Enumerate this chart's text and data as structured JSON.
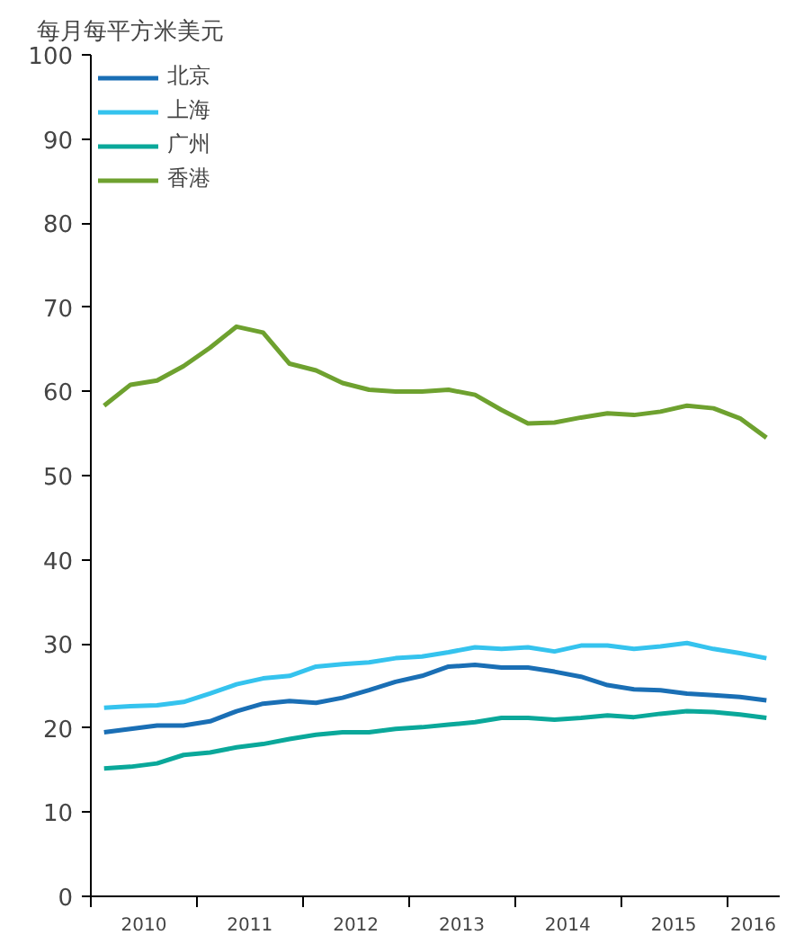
{
  "chart_data": {
    "type": "line",
    "ylabel": "每月每平方米美元",
    "x": [
      2010.125,
      2010.375,
      2010.625,
      2010.875,
      2011.125,
      2011.375,
      2011.625,
      2011.875,
      2012.125,
      2012.375,
      2012.625,
      2012.875,
      2013.125,
      2013.375,
      2013.625,
      2013.875,
      2014.125,
      2014.375,
      2014.625,
      2014.875,
      2015.125,
      2015.375,
      2015.625,
      2015.875,
      2016.125,
      2016.375
    ],
    "series": [
      {
        "name": "北京",
        "color": "#1a6fb5",
        "values": [
          19.5,
          19.9,
          20.3,
          20.3,
          20.8,
          22.0,
          22.9,
          23.2,
          23.0,
          23.6,
          24.5,
          25.5,
          26.2,
          27.3,
          27.5,
          27.2,
          27.2,
          26.7,
          26.1,
          25.1,
          24.6,
          24.5,
          24.1,
          23.9,
          23.7,
          23.3
        ]
      },
      {
        "name": "上海",
        "color": "#35c3ee",
        "values": [
          22.4,
          22.6,
          22.7,
          23.1,
          24.1,
          25.2,
          25.9,
          26.2,
          27.3,
          27.6,
          27.8,
          28.3,
          28.5,
          29.0,
          29.6,
          29.4,
          29.6,
          29.1,
          29.8,
          29.8,
          29.4,
          29.7,
          30.1,
          29.4,
          28.9,
          28.3
        ]
      },
      {
        "name": "广州",
        "color": "#0aa89a",
        "values": [
          15.2,
          15.4,
          15.8,
          16.8,
          17.1,
          17.7,
          18.1,
          18.7,
          19.2,
          19.5,
          19.5,
          19.9,
          20.1,
          20.4,
          20.7,
          21.2,
          21.2,
          21.0,
          21.2,
          21.5,
          21.3,
          21.7,
          22.0,
          21.9,
          21.6,
          21.2
        ]
      },
      {
        "name": "香港",
        "color": "#6ea12f",
        "values": [
          58.3,
          60.8,
          61.3,
          63.0,
          65.2,
          67.7,
          67.0,
          63.3,
          62.5,
          61.0,
          60.2,
          60.0,
          60.0,
          60.2,
          59.6,
          57.8,
          56.2,
          56.3,
          56.9,
          57.4,
          57.2,
          57.6,
          58.3,
          58.0,
          56.8,
          54.5
        ]
      }
    ],
    "xlim": [
      2010,
      2016.5
    ],
    "xticks": [
      {
        "value": 2010,
        "label": null
      },
      {
        "value": 2010.5,
        "label": "2010"
      },
      {
        "value": 2011,
        "label": null
      },
      {
        "value": 2011.5,
        "label": "2011"
      },
      {
        "value": 2012,
        "label": null
      },
      {
        "value": 2012.5,
        "label": "2012"
      },
      {
        "value": 2013,
        "label": null
      },
      {
        "value": 2013.5,
        "label": "2013"
      },
      {
        "value": 2014,
        "label": null
      },
      {
        "value": 2014.5,
        "label": "2014"
      },
      {
        "value": 2015,
        "label": null
      },
      {
        "value": 2015.5,
        "label": "2015"
      },
      {
        "value": 2016,
        "label": null
      },
      {
        "value": 2016.25,
        "label": "2016"
      }
    ],
    "ylim": [
      0,
      100
    ],
    "yticks": [
      0,
      10,
      20,
      30,
      40,
      50,
      60,
      70,
      80,
      90,
      100
    ],
    "grid": false,
    "legend": "top left",
    "marker": "none",
    "line_style": "solid"
  }
}
